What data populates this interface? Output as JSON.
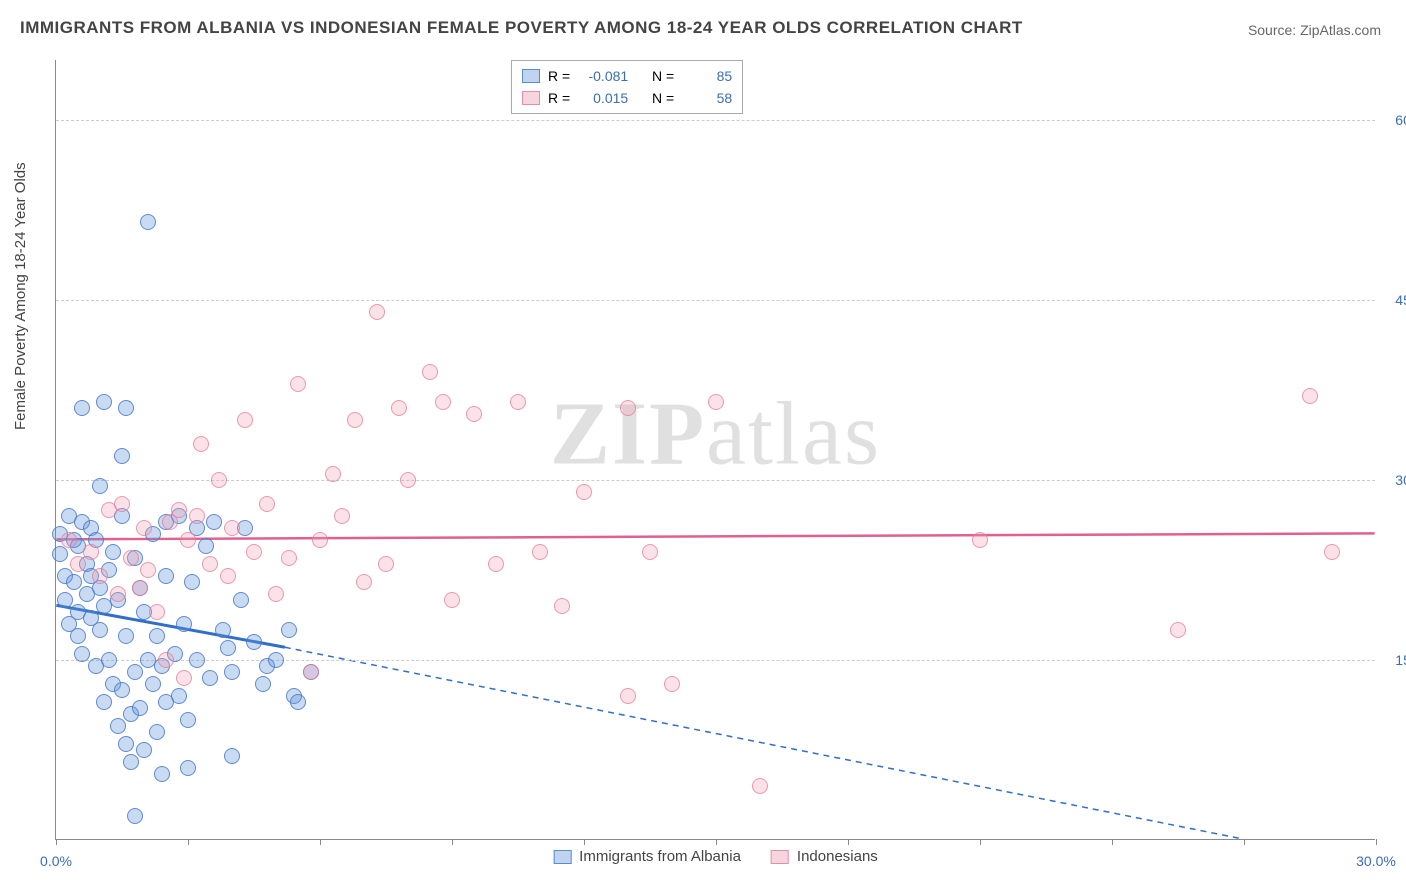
{
  "title": "IMMIGRANTS FROM ALBANIA VS INDONESIAN FEMALE POVERTY AMONG 18-24 YEAR OLDS CORRELATION CHART",
  "source": "Source: ZipAtlas.com",
  "watermark_bold": "ZIP",
  "watermark_light": "atlas",
  "y_axis_label": "Female Poverty Among 18-24 Year Olds",
  "chart": {
    "type": "scatter",
    "xlim": [
      0,
      30
    ],
    "ylim": [
      0,
      65
    ],
    "x_ticks": [
      0,
      3,
      6,
      9,
      12,
      15,
      18,
      21,
      24,
      27,
      30
    ],
    "x_tick_labels": {
      "0": "0.0%",
      "30": "30.0%"
    },
    "y_gridlines": [
      15,
      30,
      45,
      60
    ],
    "y_tick_labels": {
      "15": "15.0%",
      "30": "30.0%",
      "45": "45.0%",
      "60": "60.0%"
    },
    "background_color": "#ffffff",
    "grid_color": "#cccccc",
    "axis_color": "#888888",
    "marker_size": 16
  },
  "series": [
    {
      "id": "albania",
      "label": "Immigrants from Albania",
      "color_fill": "rgba(100,150,220,0.35)",
      "color_stroke": "#5a8cd0",
      "trend_color": "#2f6fc9",
      "R": "-0.081",
      "N": "85",
      "trend": {
        "x1": 0,
        "y1": 19.5,
        "x2": 5.2,
        "y2": 16.0,
        "dash_x2": 27,
        "dash_y2": 0
      },
      "points": [
        [
          0.1,
          25.5
        ],
        [
          0.1,
          23.8
        ],
        [
          0.2,
          22.0
        ],
        [
          0.2,
          20.0
        ],
        [
          0.3,
          27.0
        ],
        [
          0.3,
          18.0
        ],
        [
          0.4,
          25.0
        ],
        [
          0.4,
          21.5
        ],
        [
          0.5,
          24.5
        ],
        [
          0.5,
          19.0
        ],
        [
          0.5,
          17.0
        ],
        [
          0.6,
          36.0
        ],
        [
          0.6,
          15.5
        ],
        [
          0.6,
          26.5
        ],
        [
          0.7,
          23.0
        ],
        [
          0.7,
          20.5
        ],
        [
          0.8,
          26.0
        ],
        [
          0.8,
          18.5
        ],
        [
          0.8,
          22.0
        ],
        [
          0.9,
          14.5
        ],
        [
          0.9,
          25.0
        ],
        [
          1.0,
          29.5
        ],
        [
          1.0,
          21.0
        ],
        [
          1.0,
          17.5
        ],
        [
          1.1,
          36.5
        ],
        [
          1.1,
          19.5
        ],
        [
          1.1,
          11.5
        ],
        [
          1.2,
          22.5
        ],
        [
          1.2,
          15.0
        ],
        [
          1.3,
          13.0
        ],
        [
          1.3,
          24.0
        ],
        [
          1.4,
          9.5
        ],
        [
          1.4,
          20.0
        ],
        [
          1.5,
          32.0
        ],
        [
          1.5,
          12.5
        ],
        [
          1.5,
          27.0
        ],
        [
          1.6,
          36.0
        ],
        [
          1.6,
          8.0
        ],
        [
          1.6,
          17.0
        ],
        [
          1.7,
          10.5
        ],
        [
          1.7,
          6.5
        ],
        [
          1.8,
          14.0
        ],
        [
          1.8,
          23.5
        ],
        [
          1.8,
          2.0
        ],
        [
          1.9,
          11.0
        ],
        [
          1.9,
          21.0
        ],
        [
          2.0,
          19.0
        ],
        [
          2.0,
          7.5
        ],
        [
          2.1,
          51.5
        ],
        [
          2.1,
          15.0
        ],
        [
          2.2,
          13.0
        ],
        [
          2.2,
          25.5
        ],
        [
          2.3,
          9.0
        ],
        [
          2.3,
          17.0
        ],
        [
          2.4,
          14.5
        ],
        [
          2.4,
          5.5
        ],
        [
          2.5,
          11.5
        ],
        [
          2.5,
          22.0
        ],
        [
          2.5,
          26.5
        ],
        [
          2.7,
          15.5
        ],
        [
          2.8,
          12.0
        ],
        [
          2.8,
          27.0
        ],
        [
          2.9,
          18.0
        ],
        [
          3.0,
          10.0
        ],
        [
          3.0,
          6.0
        ],
        [
          3.1,
          21.5
        ],
        [
          3.2,
          15.0
        ],
        [
          3.2,
          26.0
        ],
        [
          3.4,
          24.5
        ],
        [
          3.5,
          13.5
        ],
        [
          3.6,
          26.5
        ],
        [
          3.8,
          17.5
        ],
        [
          3.9,
          16.0
        ],
        [
          4.0,
          7.0
        ],
        [
          4.0,
          14.0
        ],
        [
          4.2,
          20.0
        ],
        [
          4.3,
          26.0
        ],
        [
          4.5,
          16.5
        ],
        [
          4.7,
          13.0
        ],
        [
          4.8,
          14.5
        ],
        [
          5.0,
          15.0
        ],
        [
          5.3,
          17.5
        ],
        [
          5.4,
          12.0
        ],
        [
          5.5,
          11.5
        ],
        [
          5.8,
          14.0
        ]
      ]
    },
    {
      "id": "indonesians",
      "label": "Indonesians",
      "color_fill": "rgba(240,160,180,0.3)",
      "color_stroke": "#e090aa",
      "trend_color": "#e06090",
      "R": "0.015",
      "N": "58",
      "trend": {
        "x1": 0,
        "y1": 25.0,
        "x2": 30,
        "y2": 25.5
      },
      "points": [
        [
          0.3,
          25.0
        ],
        [
          0.5,
          23.0
        ],
        [
          0.8,
          24.0
        ],
        [
          1.0,
          22.0
        ],
        [
          1.2,
          27.5
        ],
        [
          1.4,
          20.5
        ],
        [
          1.5,
          28.0
        ],
        [
          1.7,
          23.5
        ],
        [
          1.9,
          21.0
        ],
        [
          2.0,
          26.0
        ],
        [
          2.1,
          22.5
        ],
        [
          2.3,
          19.0
        ],
        [
          2.5,
          15.0
        ],
        [
          2.6,
          26.5
        ],
        [
          2.8,
          27.5
        ],
        [
          2.9,
          13.5
        ],
        [
          3.0,
          25.0
        ],
        [
          3.2,
          27.0
        ],
        [
          3.3,
          33.0
        ],
        [
          3.5,
          23.0
        ],
        [
          3.7,
          30.0
        ],
        [
          3.9,
          22.0
        ],
        [
          4.0,
          26.0
        ],
        [
          4.3,
          35.0
        ],
        [
          4.5,
          24.0
        ],
        [
          4.8,
          28.0
        ],
        [
          5.0,
          20.5
        ],
        [
          5.3,
          23.5
        ],
        [
          5.5,
          38.0
        ],
        [
          5.8,
          14.0
        ],
        [
          6.0,
          25.0
        ],
        [
          6.3,
          30.5
        ],
        [
          6.5,
          27.0
        ],
        [
          6.8,
          35.0
        ],
        [
          7.0,
          21.5
        ],
        [
          7.3,
          44.0
        ],
        [
          7.5,
          23.0
        ],
        [
          7.8,
          36.0
        ],
        [
          8.0,
          30.0
        ],
        [
          8.5,
          39.0
        ],
        [
          8.8,
          36.5
        ],
        [
          9.0,
          20.0
        ],
        [
          9.5,
          35.5
        ],
        [
          10.0,
          23.0
        ],
        [
          10.5,
          36.5
        ],
        [
          11.0,
          24.0
        ],
        [
          11.5,
          19.5
        ],
        [
          12.0,
          29.0
        ],
        [
          13.0,
          12.0
        ],
        [
          13.5,
          24.0
        ],
        [
          14.0,
          13.0
        ],
        [
          15.0,
          36.5
        ],
        [
          16.0,
          4.5
        ],
        [
          21.0,
          25.0
        ],
        [
          25.5,
          17.5
        ],
        [
          28.5,
          37.0
        ],
        [
          29.0,
          24.0
        ],
        [
          13.0,
          36.0
        ]
      ]
    }
  ],
  "top_legend": {
    "R_prefix": "R =",
    "N_prefix": "N ="
  }
}
